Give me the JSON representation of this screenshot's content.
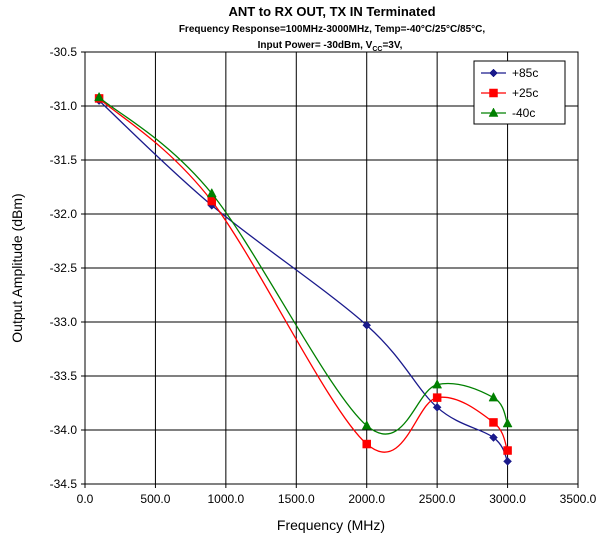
{
  "chart_data": {
    "type": "line",
    "title": "ANT to RX OUT, TX IN Terminated",
    "subtitle_line1": "Frequency Response=100MHz-3000MHz, Temp=-40°C/25°C/85°C,",
    "subtitle_line2_main": "Input Power= -30dBm, V",
    "subtitle_line2_sub": "CC",
    "subtitle_line2_end": "=3V,",
    "xlabel": "Frequency (MHz)",
    "ylabel": "Output Amplitude (dBm)",
    "xlim": [
      0,
      3500
    ],
    "ylim": [
      -34.5,
      -30.5
    ],
    "x_ticks": [
      0,
      500,
      1000,
      1500,
      2000,
      2500,
      3000,
      3500
    ],
    "x_tick_labels": [
      "0.0",
      "500.0",
      "1000.0",
      "1500.0",
      "2000.0",
      "2500.0",
      "3000.0",
      "3500.0"
    ],
    "y_ticks": [
      -30.5,
      -31.0,
      -31.5,
      -32.0,
      -32.5,
      -33.0,
      -33.5,
      -34.0,
      -34.5
    ],
    "y_tick_labels": [
      "-30.5",
      "-31.0",
      "-31.5",
      "-32.0",
      "-32.5",
      "-33.0",
      "-33.5",
      "-34.0",
      "-34.5"
    ],
    "grid": true,
    "legend_position": "top-right",
    "series": [
      {
        "name": "+85c",
        "color": "#1a1a8c",
        "marker": "diamond",
        "x": [
          100,
          900,
          2000,
          2500,
          2900,
          3000
        ],
        "y": [
          -30.95,
          -31.92,
          -33.03,
          -33.79,
          -34.07,
          -34.29
        ]
      },
      {
        "name": "+25c",
        "color": "#ff0000",
        "marker": "square",
        "x": [
          100,
          900,
          2000,
          2500,
          2900,
          3000
        ],
        "y": [
          -30.93,
          -31.88,
          -34.13,
          -33.7,
          -33.93,
          -34.19
        ]
      },
      {
        "name": "-40c",
        "color": "#008000",
        "marker": "triangle",
        "x": [
          100,
          900,
          2000,
          2500,
          2900,
          3000
        ],
        "y": [
          -30.92,
          -31.81,
          -33.96,
          -33.58,
          -33.7,
          -33.94
        ]
      }
    ]
  }
}
